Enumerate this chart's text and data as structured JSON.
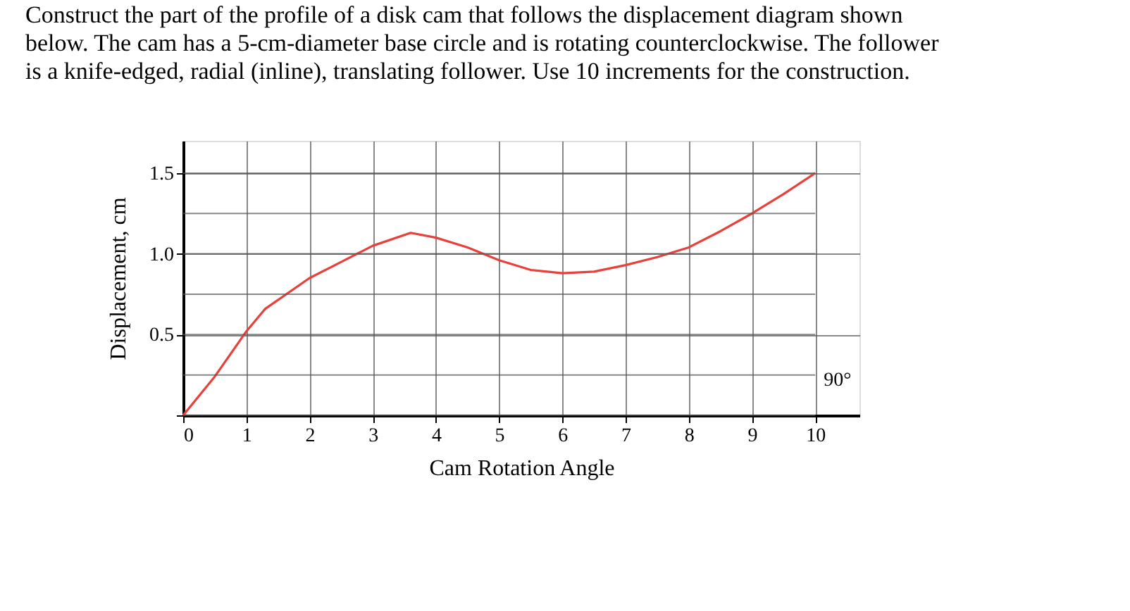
{
  "chart_data": {
    "type": "line",
    "title": [
      "Construct the part of the profile of a disk cam that follows the displacement diagram shown",
      "below. The cam has a 5-cm-diameter base circle and is rotating counterclockwise. The follower",
      "is a knife-edged, radial (inline), translating follower. Use 10 increments for the construction."
    ],
    "xlabel": "Cam Rotation Angle",
    "ylabel": "Displacement, cm",
    "x": [
      0,
      0.5,
      1,
      1.3,
      2,
      2.5,
      3,
      3.6,
      4,
      4.5,
      5,
      5.5,
      6,
      6.5,
      7,
      7.5,
      8,
      8.5,
      9,
      9.5,
      10
    ],
    "series": [
      {
        "color": "#e8403a",
        "values": [
          0,
          0.24,
          0.52,
          0.66,
          0.85,
          0.95,
          1.05,
          1.13,
          1.1,
          1.04,
          0.96,
          0.9,
          0.88,
          0.89,
          0.93,
          0.98,
          1.04,
          1.14,
          1.25,
          1.37,
          1.5
        ]
      }
    ],
    "xlim": [
      0,
      10.7
    ],
    "xticks": [
      0,
      1,
      2,
      3,
      4,
      5,
      6,
      7,
      8,
      9,
      10
    ],
    "ylim": [
      0,
      1.7
    ],
    "yticks": [
      {
        "value": 0,
        "label": null
      },
      {
        "value": 0.25,
        "label": null
      },
      0.5,
      {
        "value": 0.75,
        "label": null
      },
      "1.0",
      {
        "value": 1.25,
        "label": null
      },
      1.5
    ],
    "annotations": [
      "90°"
    ],
    "grid": true,
    "line_style": "solid",
    "marker": "none"
  }
}
